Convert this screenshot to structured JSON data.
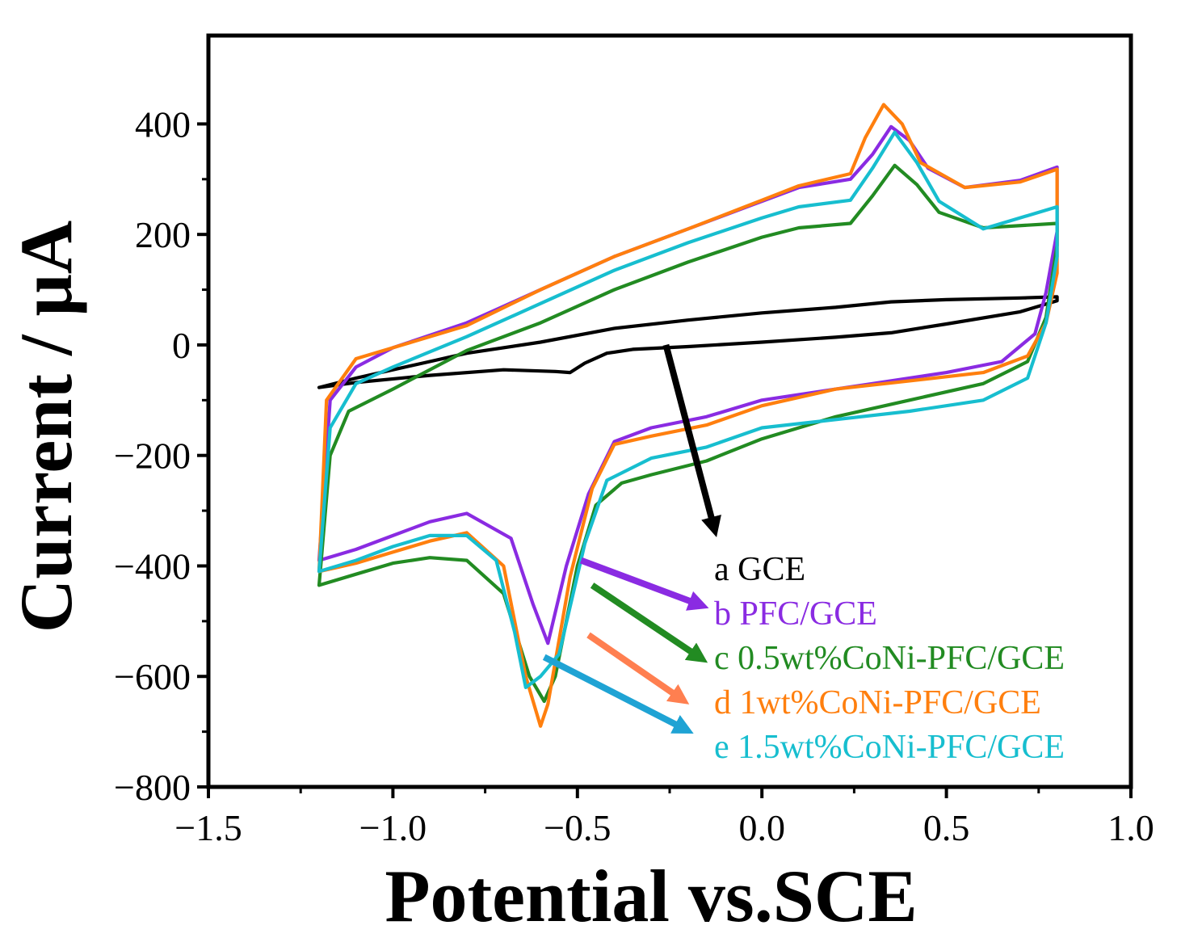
{
  "chart_data": {
    "type": "line",
    "title": "",
    "xlabel": "Potential vs.SCE",
    "ylabel": "Current / μA",
    "xlim": [
      -1.5,
      1.0
    ],
    "ylim": [
      -800,
      560
    ],
    "xticks": [
      {
        "value": -1.5,
        "label": "−1.5"
      },
      {
        "value": -1.0,
        "label": "−1.0"
      },
      {
        "value": -0.5,
        "label": "−0.5"
      },
      {
        "value": 0.0,
        "label": "0.0"
      },
      {
        "value": 0.5,
        "label": "0.5"
      },
      {
        "value": 1.0,
        "label": "1.0"
      }
    ],
    "yticks": [
      {
        "value": 400,
        "label": "400"
      },
      {
        "value": 200,
        "label": "200"
      },
      {
        "value": 0,
        "label": "0"
      },
      {
        "value": -200,
        "label": "−200"
      },
      {
        "value": -400,
        "label": "−400"
      },
      {
        "value": -600,
        "label": "−600"
      },
      {
        "value": -800,
        "label": "−800"
      }
    ],
    "legend_position": "bottom-right",
    "series": [
      {
        "id": "a",
        "name": "a GCE",
        "color": "#000000",
        "points": [
          [
            -1.2,
            -77
          ],
          [
            -1.1,
            -60
          ],
          [
            -1.0,
            -45
          ],
          [
            -0.9,
            -30
          ],
          [
            -0.8,
            -15
          ],
          [
            -0.6,
            5
          ],
          [
            -0.4,
            30
          ],
          [
            -0.2,
            45
          ],
          [
            0.0,
            58
          ],
          [
            0.2,
            68
          ],
          [
            0.35,
            78
          ],
          [
            0.5,
            82
          ],
          [
            0.7,
            85
          ],
          [
            0.8,
            87
          ],
          [
            0.8,
            80
          ],
          [
            0.7,
            60
          ],
          [
            0.5,
            38
          ],
          [
            0.35,
            22
          ],
          [
            0.2,
            14
          ],
          [
            0.0,
            5
          ],
          [
            -0.2,
            -3
          ],
          [
            -0.35,
            -8
          ],
          [
            -0.42,
            -15
          ],
          [
            -0.48,
            -33
          ],
          [
            -0.52,
            -50
          ],
          [
            -0.56,
            -48
          ],
          [
            -0.7,
            -45
          ],
          [
            -0.9,
            -55
          ],
          [
            -1.1,
            -68
          ],
          [
            -1.2,
            -77
          ]
        ]
      },
      {
        "id": "b",
        "name": "b PFC/GCE",
        "color": "#8a2be2",
        "points": [
          [
            -1.2,
            -390
          ],
          [
            -1.17,
            -100
          ],
          [
            -1.1,
            -40
          ],
          [
            -1.0,
            -5
          ],
          [
            -0.8,
            40
          ],
          [
            -0.6,
            100
          ],
          [
            -0.4,
            160
          ],
          [
            -0.2,
            210
          ],
          [
            0.0,
            260
          ],
          [
            0.1,
            285
          ],
          [
            0.24,
            300
          ],
          [
            0.3,
            345
          ],
          [
            0.35,
            395
          ],
          [
            0.4,
            370
          ],
          [
            0.45,
            320
          ],
          [
            0.55,
            285
          ],
          [
            0.7,
            298
          ],
          [
            0.8,
            322
          ],
          [
            0.8,
            205
          ],
          [
            0.77,
            95
          ],
          [
            0.74,
            20
          ],
          [
            0.65,
            -30
          ],
          [
            0.5,
            -50
          ],
          [
            0.3,
            -70
          ],
          [
            0.0,
            -100
          ],
          [
            -0.15,
            -130
          ],
          [
            -0.3,
            -150
          ],
          [
            -0.4,
            -175
          ],
          [
            -0.47,
            -270
          ],
          [
            -0.53,
            -400
          ],
          [
            -0.58,
            -540
          ],
          [
            -0.62,
            -470
          ],
          [
            -0.68,
            -350
          ],
          [
            -0.8,
            -305
          ],
          [
            -0.9,
            -320
          ],
          [
            -1.0,
            -345
          ],
          [
            -1.1,
            -370
          ],
          [
            -1.2,
            -390
          ]
        ]
      },
      {
        "id": "c",
        "name": "c 0.5wt%CoNi-PFC/GCE",
        "color": "#228b22",
        "points": [
          [
            -1.2,
            -435
          ],
          [
            -1.17,
            -200
          ],
          [
            -1.12,
            -120
          ],
          [
            -1.0,
            -80
          ],
          [
            -0.8,
            -10
          ],
          [
            -0.6,
            40
          ],
          [
            -0.4,
            100
          ],
          [
            -0.2,
            150
          ],
          [
            0.0,
            195
          ],
          [
            0.1,
            212
          ],
          [
            0.24,
            220
          ],
          [
            0.3,
            270
          ],
          [
            0.36,
            325
          ],
          [
            0.42,
            290
          ],
          [
            0.48,
            240
          ],
          [
            0.6,
            212
          ],
          [
            0.8,
            220
          ],
          [
            0.8,
            180
          ],
          [
            0.77,
            50
          ],
          [
            0.72,
            -30
          ],
          [
            0.6,
            -70
          ],
          [
            0.4,
            -100
          ],
          [
            0.2,
            -130
          ],
          [
            0.0,
            -170
          ],
          [
            -0.15,
            -210
          ],
          [
            -0.3,
            -235
          ],
          [
            -0.38,
            -250
          ],
          [
            -0.45,
            -290
          ],
          [
            -0.5,
            -400
          ],
          [
            -0.56,
            -600
          ],
          [
            -0.59,
            -645
          ],
          [
            -0.63,
            -600
          ],
          [
            -0.7,
            -450
          ],
          [
            -0.8,
            -390
          ],
          [
            -0.9,
            -385
          ],
          [
            -1.0,
            -395
          ],
          [
            -1.1,
            -415
          ],
          [
            -1.2,
            -435
          ]
        ]
      },
      {
        "id": "d",
        "name": "d 1wt%CoNi-PFC/GCE",
        "color": "#ff7f0e",
        "points": [
          [
            -1.2,
            -410
          ],
          [
            -1.18,
            -100
          ],
          [
            -1.1,
            -25
          ],
          [
            -1.0,
            -5
          ],
          [
            -0.8,
            35
          ],
          [
            -0.6,
            100
          ],
          [
            -0.4,
            160
          ],
          [
            -0.2,
            210
          ],
          [
            0.0,
            262
          ],
          [
            0.1,
            288
          ],
          [
            0.24,
            310
          ],
          [
            0.28,
            375
          ],
          [
            0.33,
            435
          ],
          [
            0.38,
            400
          ],
          [
            0.43,
            330
          ],
          [
            0.55,
            285
          ],
          [
            0.7,
            295
          ],
          [
            0.8,
            318
          ],
          [
            0.8,
            130
          ],
          [
            0.77,
            40
          ],
          [
            0.72,
            -20
          ],
          [
            0.6,
            -50
          ],
          [
            0.4,
            -65
          ],
          [
            0.2,
            -80
          ],
          [
            0.0,
            -110
          ],
          [
            -0.15,
            -145
          ],
          [
            -0.3,
            -165
          ],
          [
            -0.4,
            -180
          ],
          [
            -0.46,
            -260
          ],
          [
            -0.52,
            -420
          ],
          [
            -0.58,
            -650
          ],
          [
            -0.6,
            -690
          ],
          [
            -0.64,
            -600
          ],
          [
            -0.7,
            -400
          ],
          [
            -0.8,
            -340
          ],
          [
            -0.9,
            -355
          ],
          [
            -1.0,
            -375
          ],
          [
            -1.1,
            -395
          ],
          [
            -1.2,
            -410
          ]
        ]
      },
      {
        "id": "e",
        "name": "e 1.5wt%CoNi-PFC/GCE",
        "color": "#17becf",
        "points": [
          [
            -1.2,
            -410
          ],
          [
            -1.17,
            -150
          ],
          [
            -1.1,
            -70
          ],
          [
            -1.0,
            -40
          ],
          [
            -0.8,
            15
          ],
          [
            -0.6,
            75
          ],
          [
            -0.4,
            135
          ],
          [
            -0.2,
            185
          ],
          [
            0.0,
            230
          ],
          [
            0.1,
            250
          ],
          [
            0.24,
            262
          ],
          [
            0.3,
            320
          ],
          [
            0.36,
            385
          ],
          [
            0.42,
            330
          ],
          [
            0.48,
            260
          ],
          [
            0.6,
            210
          ],
          [
            0.8,
            250
          ],
          [
            0.8,
            160
          ],
          [
            0.77,
            40
          ],
          [
            0.72,
            -60
          ],
          [
            0.6,
            -100
          ],
          [
            0.4,
            -120
          ],
          [
            0.2,
            -135
          ],
          [
            0.0,
            -150
          ],
          [
            -0.15,
            -185
          ],
          [
            -0.3,
            -205
          ],
          [
            -0.42,
            -245
          ],
          [
            -0.48,
            -360
          ],
          [
            -0.55,
            -560
          ],
          [
            -0.6,
            -600
          ],
          [
            -0.64,
            -620
          ],
          [
            -0.67,
            -520
          ],
          [
            -0.72,
            -390
          ],
          [
            -0.8,
            -345
          ],
          [
            -0.9,
            -345
          ],
          [
            -1.0,
            -365
          ],
          [
            -1.1,
            -390
          ],
          [
            -1.2,
            -410
          ]
        ]
      }
    ],
    "annotations": [
      {
        "id": "arrow-a",
        "color": "#000000",
        "from": [
          -0.26,
          0
        ],
        "to": [
          -0.13,
          -330
        ]
      },
      {
        "id": "arrow-b",
        "color": "#8a2be2",
        "from": [
          -0.49,
          -390
        ],
        "to": [
          -0.17,
          -470
        ]
      },
      {
        "id": "arrow-c",
        "color": "#228b22",
        "from": [
          -0.46,
          -435
        ],
        "to": [
          -0.17,
          -565
        ]
      },
      {
        "id": "arrow-d",
        "color": "#ff7f50",
        "from": [
          -0.47,
          -525
        ],
        "to": [
          -0.22,
          -640
        ]
      },
      {
        "id": "arrow-e",
        "color": "#1fa3d4",
        "from": [
          -0.59,
          -565
        ],
        "to": [
          -0.21,
          -695
        ]
      }
    ],
    "legend": [
      {
        "id": "a",
        "label": "a GCE",
        "color": "#000000"
      },
      {
        "id": "b",
        "label": "b PFC/GCE",
        "color": "#8a2be2"
      },
      {
        "id": "c",
        "label": "c 0.5wt%CoNi-PFC/GCE",
        "color": "#228b22"
      },
      {
        "id": "d",
        "label": "d 1wt%CoNi-PFC/GCE",
        "color": "#ff7f0e"
      },
      {
        "id": "e",
        "label": "e 1.5wt%CoNi-PFC/GCE",
        "color": "#17becf"
      }
    ]
  }
}
